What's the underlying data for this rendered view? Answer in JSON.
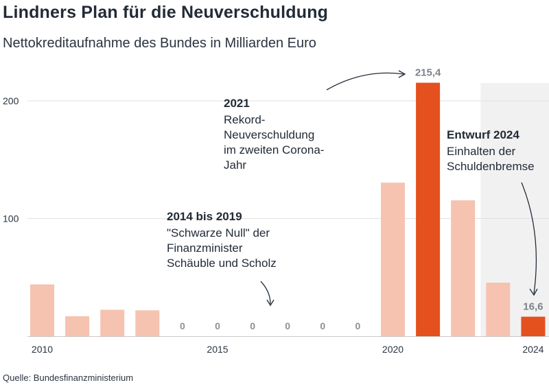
{
  "header": {
    "title": "Lindners Plan für die Neuverschuldung",
    "subtitle": "Nettokreditaufnahme des Bundes in Milliarden Euro"
  },
  "footer": {
    "source": "Quelle: Bundesfinanzministerium"
  },
  "colors": {
    "bar_light": "#f5c3b0",
    "bar_highlight": "#e5501f",
    "shade": "#f1f1f1",
    "grid": "#e0e0e0"
  },
  "annotations": {
    "a2021": {
      "title": "2021",
      "lines": [
        "Rekord-",
        "Neuverschuldung",
        "im zweiten Corona-",
        "Jahr"
      ]
    },
    "a2014": {
      "title": "2014 bis 2019",
      "lines": [
        "\"Schwarze Null\" der",
        "Finanzminister",
        "Schäuble und Scholz"
      ]
    },
    "a2024": {
      "title": "Entwurf 2024",
      "lines": [
        "Einhalten der",
        "Schuldenbremse"
      ]
    }
  },
  "chart_data": {
    "type": "bar",
    "title": "Lindners Plan für die Neuverschuldung",
    "subtitle": "Nettokreditaufnahme des Bundes in Milliarden Euro",
    "categories": [
      2010,
      2011,
      2012,
      2013,
      2014,
      2015,
      2016,
      2017,
      2018,
      2019,
      2020,
      2021,
      2022,
      2023,
      2024
    ],
    "values": [
      44,
      17,
      22.5,
      22,
      0,
      0,
      0,
      0,
      0,
      0,
      130.5,
      215.4,
      115.5,
      45.5,
      16.6
    ],
    "highlighted": [
      2021,
      2024
    ],
    "shaded_region": [
      2023,
      2024
    ],
    "value_labels": {
      "2021": "215,4",
      "2024": "16,6",
      "2014": "0",
      "2015": "0",
      "2016": "0",
      "2017": "0",
      "2018": "0",
      "2019": "0"
    },
    "x_ticks": [
      "2010",
      "2015",
      "2020",
      "2024"
    ],
    "y_ticks": [
      100,
      200
    ],
    "ylim": [
      0,
      230
    ],
    "grid": true
  }
}
